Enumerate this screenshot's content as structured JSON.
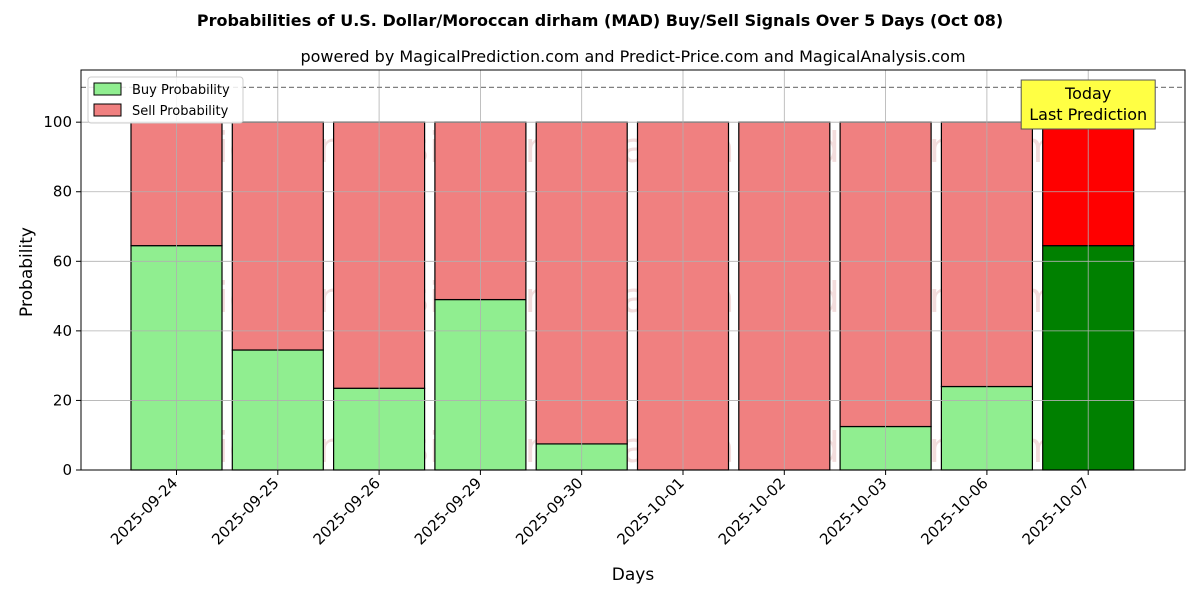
{
  "chart_data": {
    "type": "bar",
    "stacked": true,
    "title": "Probabilities of U.S. Dollar/Moroccan dirham (MAD) Buy/Sell Signals Over 5 Days (Oct 08)",
    "subtitle": "powered by MagicalPrediction.com and Predict-Price.com and MagicalAnalysis.com",
    "xlabel": "Days",
    "ylabel": "Probability",
    "ylim": [
      0,
      115
    ],
    "yticks": [
      0,
      20,
      40,
      60,
      80,
      100
    ],
    "grid": true,
    "legend_position": "top-left",
    "categories": [
      "2025-09-24",
      "2025-09-25",
      "2025-09-26",
      "2025-09-29",
      "2025-09-30",
      "2025-10-01",
      "2025-10-02",
      "2025-10-03",
      "2025-10-06",
      "2025-10-07"
    ],
    "series": [
      {
        "name": "Buy Probability",
        "color": "#90ee90",
        "values": [
          64.5,
          34.5,
          23.5,
          49,
          7.5,
          0,
          0,
          12.5,
          24,
          64.5
        ]
      },
      {
        "name": "Sell Probability",
        "color": "#f08080",
        "values": [
          35.5,
          65.5,
          76.5,
          51,
          92.5,
          100,
          100,
          87.5,
          76,
          35.5
        ]
      }
    ],
    "highlight": {
      "index": 9,
      "buy_color": "#008000",
      "sell_color": "#ff0000"
    },
    "reference_line": {
      "y": 110,
      "style": "dashed",
      "color": "#808080"
    },
    "annotation": {
      "lines": [
        "Today",
        "Last Prediction"
      ],
      "background": "#ffff44"
    },
    "watermarks": [
      "MagicalAnalysis.com",
      "MagicalPrediction.com"
    ]
  }
}
